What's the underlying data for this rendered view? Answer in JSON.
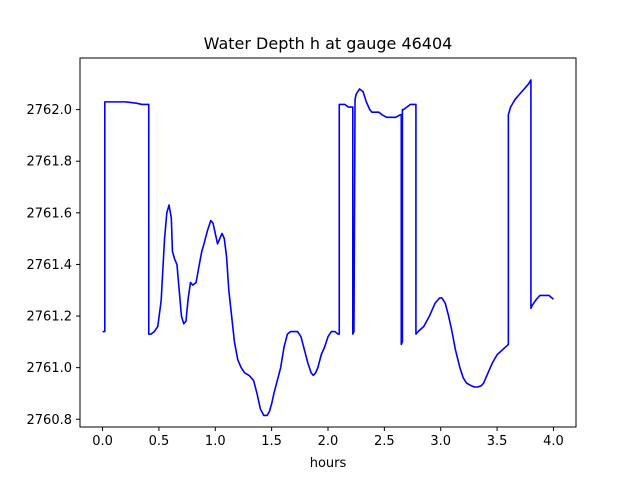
{
  "chart_data": {
    "type": "line",
    "title": "Water Depth h at gauge 46404",
    "xlabel": "hours",
    "ylabel": "",
    "xlim": [
      -0.2,
      4.2
    ],
    "ylim": [
      2760.77,
      2762.2
    ],
    "xticks": [
      0.0,
      0.5,
      1.0,
      1.5,
      2.0,
      2.5,
      3.0,
      3.5,
      4.0
    ],
    "xtick_labels": [
      "0.0",
      "0.5",
      "1.0",
      "1.5",
      "2.0",
      "2.5",
      "3.0",
      "3.5",
      "4.0"
    ],
    "yticks": [
      2760.8,
      2761.0,
      2761.2,
      2761.4,
      2761.6,
      2761.8,
      2762.0
    ],
    "ytick_labels": [
      "2760.8",
      "2761.0",
      "2761.2",
      "2761.4",
      "2761.6",
      "2761.8",
      "2762.0"
    ],
    "grid": false,
    "colors": {
      "line": "#0000ff",
      "axes": "#000000",
      "background": "#ffffff"
    },
    "series": [
      {
        "x": [
          0.0,
          0.02,
          0.02,
          0.05,
          0.1,
          0.2,
          0.3,
          0.35,
          0.41,
          0.41,
          0.43,
          0.46,
          0.49,
          0.52,
          0.55,
          0.57,
          0.59,
          0.61,
          0.62,
          0.64,
          0.66,
          0.68,
          0.7,
          0.72,
          0.74,
          0.76,
          0.78,
          0.8,
          0.83,
          0.85,
          0.88,
          0.9,
          0.93,
          0.96,
          0.98,
          1.0,
          1.02,
          1.04,
          1.06,
          1.08,
          1.1,
          1.12,
          1.14,
          1.17,
          1.2,
          1.23,
          1.26,
          1.3,
          1.34,
          1.37,
          1.4,
          1.43,
          1.46,
          1.48,
          1.5,
          1.52,
          1.55,
          1.58,
          1.61,
          1.64,
          1.67,
          1.7,
          1.73,
          1.76,
          1.79,
          1.82,
          1.85,
          1.87,
          1.89,
          1.91,
          1.94,
          1.97,
          2.0,
          2.03,
          2.06,
          2.09,
          2.1,
          2.1,
          2.12,
          2.15,
          2.18,
          2.2,
          2.21,
          2.22,
          2.22,
          2.23,
          2.24,
          2.25,
          2.28,
          2.31,
          2.34,
          2.37,
          2.39,
          2.42,
          2.45,
          2.48,
          2.52,
          2.56,
          2.6,
          2.64,
          2.65,
          2.65,
          2.66,
          2.66,
          2.67,
          2.7,
          2.73,
          2.77,
          2.78,
          2.78,
          2.8,
          2.85,
          2.9,
          2.95,
          2.99,
          3.01,
          3.04,
          3.07,
          3.1,
          3.13,
          3.17,
          3.2,
          3.23,
          3.27,
          3.3,
          3.33,
          3.36,
          3.38,
          3.4,
          3.43,
          3.46,
          3.5,
          3.55,
          3.6,
          3.6,
          3.62,
          3.66,
          3.7,
          3.74,
          3.78,
          3.8,
          3.8,
          3.81,
          3.84,
          3.88,
          3.92,
          3.96,
          4.0
        ],
        "y": [
          2761.14,
          2761.14,
          2762.03,
          2762.03,
          2762.03,
          2762.03,
          2762.025,
          2762.02,
          2762.02,
          2761.13,
          2761.13,
          2761.14,
          2761.16,
          2761.26,
          2761.5,
          2761.6,
          2761.63,
          2761.58,
          2761.45,
          2761.42,
          2761.4,
          2761.3,
          2761.2,
          2761.17,
          2761.18,
          2761.27,
          2761.33,
          2761.32,
          2761.33,
          2761.38,
          2761.45,
          2761.48,
          2761.53,
          2761.57,
          2761.56,
          2761.52,
          2761.48,
          2761.5,
          2761.52,
          2761.5,
          2761.43,
          2761.3,
          2761.22,
          2761.1,
          2761.03,
          2761.0,
          2760.98,
          2760.97,
          2760.95,
          2760.9,
          2760.84,
          2760.815,
          2760.815,
          2760.83,
          2760.86,
          2760.9,
          2760.95,
          2761.0,
          2761.08,
          2761.13,
          2761.14,
          2761.14,
          2761.14,
          2761.12,
          2761.07,
          2761.02,
          2760.98,
          2760.97,
          2760.98,
          2761.0,
          2761.05,
          2761.08,
          2761.12,
          2761.14,
          2761.14,
          2761.13,
          2761.13,
          2762.02,
          2762.02,
          2762.02,
          2762.01,
          2762.01,
          2762.01,
          2762.01,
          2761.13,
          2761.14,
          2762.04,
          2762.06,
          2762.08,
          2762.07,
          2762.03,
          2762.0,
          2761.99,
          2761.99,
          2761.99,
          2761.98,
          2761.97,
          2761.97,
          2761.97,
          2761.98,
          2761.98,
          2761.09,
          2761.1,
          2762.0,
          2762.0,
          2762.01,
          2762.02,
          2762.02,
          2762.02,
          2761.13,
          2761.14,
          2761.16,
          2761.2,
          2761.25,
          2761.27,
          2761.27,
          2761.25,
          2761.2,
          2761.14,
          2761.07,
          2761.0,
          2760.96,
          2760.94,
          2760.93,
          2760.925,
          2760.925,
          2760.93,
          2760.94,
          2760.96,
          2760.99,
          2761.02,
          2761.05,
          2761.07,
          2761.09,
          2761.98,
          2762.01,
          2762.04,
          2762.06,
          2762.08,
          2762.1,
          2762.115,
          2761.23,
          2761.24,
          2761.26,
          2761.28,
          2761.28,
          2761.28,
          2761.265
        ]
      }
    ]
  }
}
